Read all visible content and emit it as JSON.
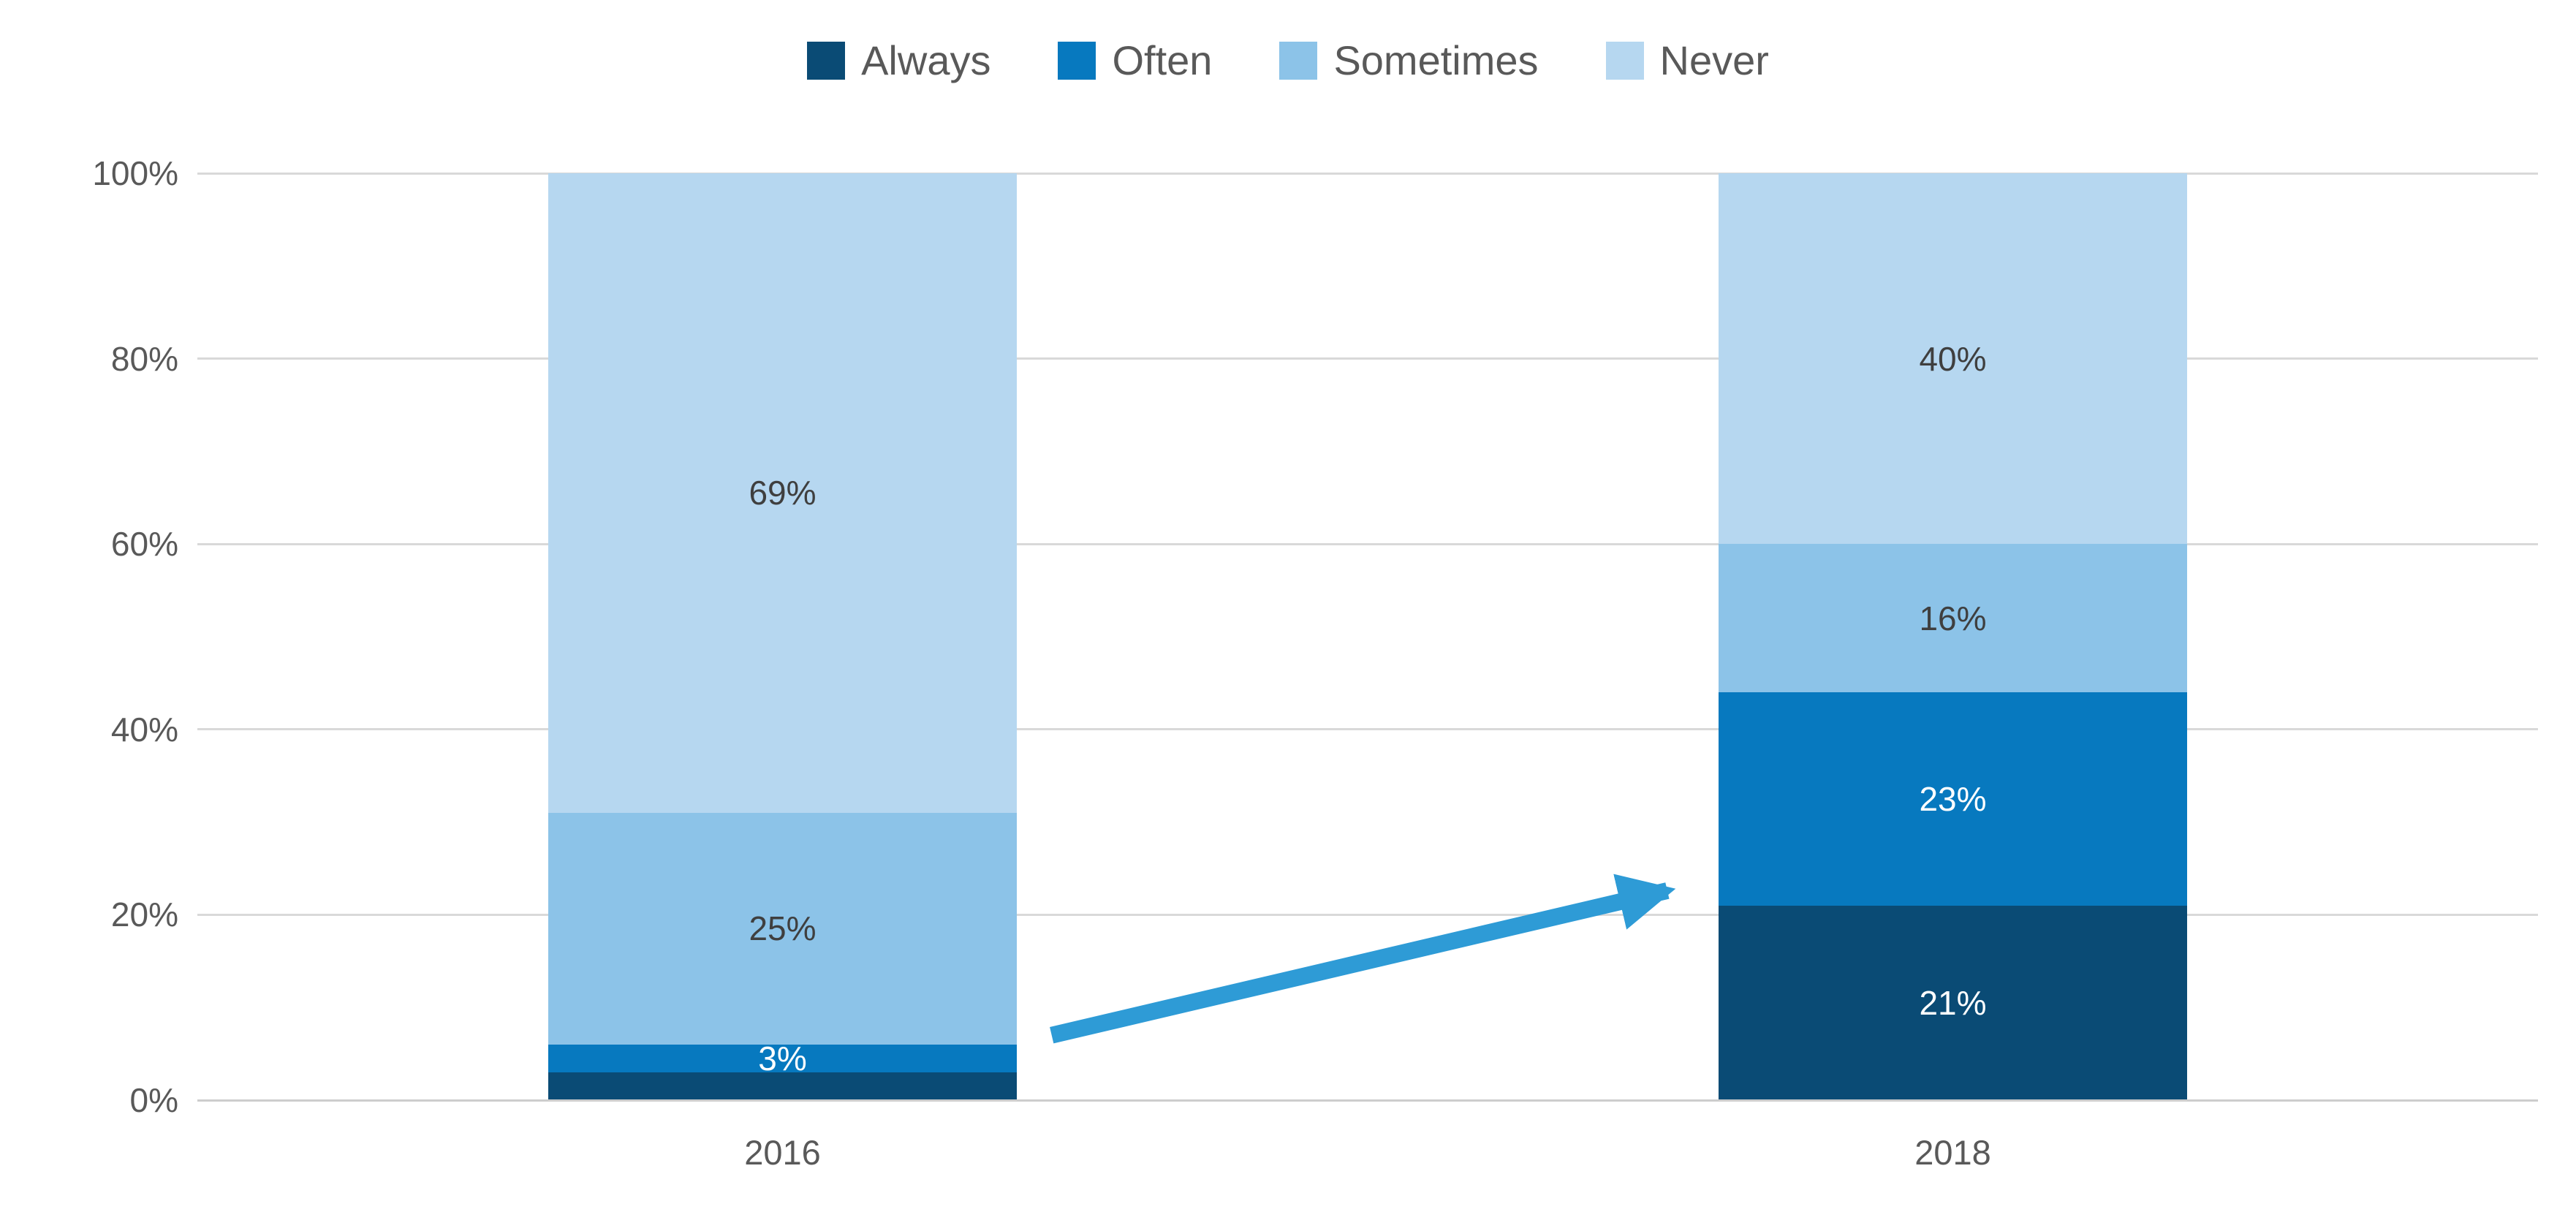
{
  "chart_data": {
    "type": "bar",
    "subtype": "stacked-100-percent",
    "title": "",
    "categories": [
      "2016",
      "2018"
    ],
    "series": [
      {
        "name": "Always",
        "color": "#0a4b75",
        "label_text_color": "#ffffff",
        "values": [
          3,
          21
        ],
        "data_labels": [
          "",
          "21%"
        ]
      },
      {
        "name": "Often",
        "color": "#0779bf",
        "label_text_color": "#ffffff",
        "values": [
          3,
          23
        ],
        "data_labels": [
          "3%",
          "23%"
        ]
      },
      {
        "name": "Sometimes",
        "color": "#8cc3e8",
        "label_text_color": "#3f3f3f",
        "values": [
          25,
          16
        ],
        "data_labels": [
          "25%",
          "16%"
        ]
      },
      {
        "name": "Never",
        "color": "#b6d7f0",
        "label_text_color": "#3f3f3f",
        "values": [
          69,
          40
        ],
        "data_labels": [
          "69%",
          "40%"
        ]
      }
    ],
    "y_axis": {
      "min": 0,
      "max": 100,
      "tick_labels": [
        "0%",
        "20%",
        "40%",
        "60%",
        "80%",
        "100%"
      ],
      "grid": true
    },
    "x_axis": {
      "tick_labels": [
        "2016",
        "2018"
      ]
    },
    "legend": {
      "position": "top",
      "entries": [
        "Always",
        "Often",
        "Sometimes",
        "Never"
      ]
    },
    "annotations": [
      {
        "type": "arrow",
        "color": "#2e9bd6",
        "from_pct": {
          "x": 36.5,
          "y": 93.0
        },
        "to_pct": {
          "x": 62.8,
          "y": 77.4
        }
      }
    ]
  },
  "colors": {
    "gridline": "#d9d9d9",
    "axis_line": "#cdcdcd",
    "tick_text": "#595959",
    "legend_text": "#595959"
  }
}
